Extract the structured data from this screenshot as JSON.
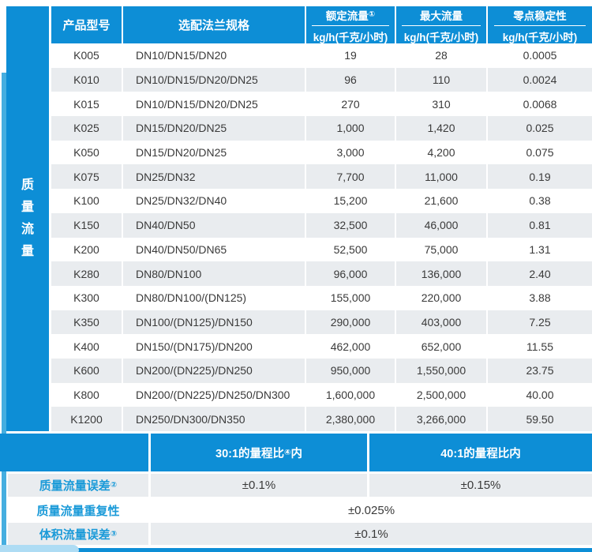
{
  "colors": {
    "primary_blue": "#0d8ed6",
    "light_strip_blue": "#45aee0",
    "corner_tab_blue": "#aedcf4",
    "row_alt_gray": "#e9ecef",
    "label_blue": "#1a9ad8",
    "text_dark": "#3a3a3a"
  },
  "sidebar": {
    "label": "质量流量"
  },
  "table": {
    "columns": {
      "model": {
        "label": "产品型号"
      },
      "flange": {
        "label": "选配法兰规格"
      },
      "rated": {
        "label": "额定流量",
        "sup": "①",
        "unit": "kg/h(千克/小时)"
      },
      "max": {
        "label": "最大流量",
        "sup": "",
        "unit": "kg/h(千克/小时)"
      },
      "zero": {
        "label": "零点稳定性",
        "sup": "",
        "unit": "kg/h(千克/小时)"
      }
    },
    "rows": [
      {
        "model": "K005",
        "flange": "DN10/DN15/DN20",
        "rated": "19",
        "max": "28",
        "zero": "0.0005"
      },
      {
        "model": "K010",
        "flange": "DN10/DN15/DN20/DN25",
        "rated": "96",
        "max": "110",
        "zero": "0.0024"
      },
      {
        "model": "K015",
        "flange": "DN10/DN15/DN20/DN25",
        "rated": "270",
        "max": "310",
        "zero": "0.0068"
      },
      {
        "model": "K025",
        "flange": "DN15/DN20/DN25",
        "rated": "1,000",
        "max": "1,420",
        "zero": "0.025"
      },
      {
        "model": "K050",
        "flange": "DN15/DN20/DN25",
        "rated": "3,000",
        "max": "4,200",
        "zero": "0.075"
      },
      {
        "model": "K075",
        "flange": "DN25/DN32",
        "rated": "7,700",
        "max": "11,000",
        "zero": "0.19"
      },
      {
        "model": "K100",
        "flange": "DN25/DN32/DN40",
        "rated": "15,200",
        "max": "21,600",
        "zero": "0.38"
      },
      {
        "model": "K150",
        "flange": "DN40/DN50",
        "rated": "32,500",
        "max": "46,000",
        "zero": "0.81"
      },
      {
        "model": "K200",
        "flange": "DN40/DN50/DN65",
        "rated": "52,500",
        "max": "75,000",
        "zero": "1.31"
      },
      {
        "model": "K280",
        "flange": "DN80/DN100",
        "rated": "96,000",
        "max": "136,000",
        "zero": "2.40"
      },
      {
        "model": "K300",
        "flange": "DN80/DN100/(DN125)",
        "rated": "155,000",
        "max": "220,000",
        "zero": "3.88"
      },
      {
        "model": "K350",
        "flange": "DN100/(DN125)/DN150",
        "rated": "290,000",
        "max": "403,000",
        "zero": "7.25"
      },
      {
        "model": "K400",
        "flange": "DN150/(DN175)/DN200",
        "rated": "462,000",
        "max": "652,000",
        "zero": "11.55"
      },
      {
        "model": "K600",
        "flange": "DN200/(DN225)/DN250",
        "rated": "950,000",
        "max": "1,550,000",
        "zero": "23.75"
      },
      {
        "model": "K800",
        "flange": "DN200/(DN225)/DN250/DN300",
        "rated": "1,600,000",
        "max": "2,500,000",
        "zero": "40.00"
      },
      {
        "model": "K1200",
        "flange": "DN250/DN300/DN350",
        "rated": "2,380,000",
        "max": "3,266,000",
        "zero": "59.50"
      }
    ]
  },
  "bottom": {
    "range": {
      "col1": {
        "pre": "30:1的量程比",
        "sup": "④",
        "post": "内"
      },
      "col2": {
        "pre": "40:1的量程比内",
        "sup": "",
        "post": ""
      }
    },
    "rows": [
      {
        "label": "质量流量误差",
        "sup": "②",
        "v1": "±0.1%",
        "v2": "±0.15%"
      },
      {
        "label": "质量流量重复性",
        "sup": "",
        "value": "±0.025%"
      },
      {
        "label": "体积流量误差",
        "sup": "③",
        "value": "±0.1%"
      }
    ]
  }
}
